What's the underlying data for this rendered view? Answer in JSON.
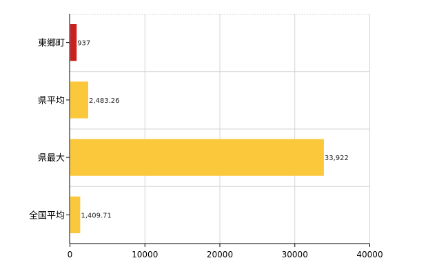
{
  "chart_data": {
    "type": "bar",
    "orientation": "horizontal",
    "categories": [
      "東郷町",
      "県平均",
      "県最大",
      "全国平均"
    ],
    "values": [
      937,
      2483.26,
      33922,
      1409.71
    ],
    "value_labels": [
      "937",
      "2,483.26",
      "33,922",
      "1,409.71"
    ],
    "bar_colors": [
      "#c8211f",
      "#fbc83c",
      "#fbc83c",
      "#fbc83c"
    ],
    "xlim": [
      0,
      40000
    ],
    "x_ticks": [
      0,
      10000,
      20000,
      30000,
      40000
    ],
    "x_tick_labels": [
      "0",
      "10000",
      "20000",
      "30000",
      "40000"
    ],
    "grid": true,
    "title": "",
    "xlabel": "",
    "ylabel": ""
  }
}
